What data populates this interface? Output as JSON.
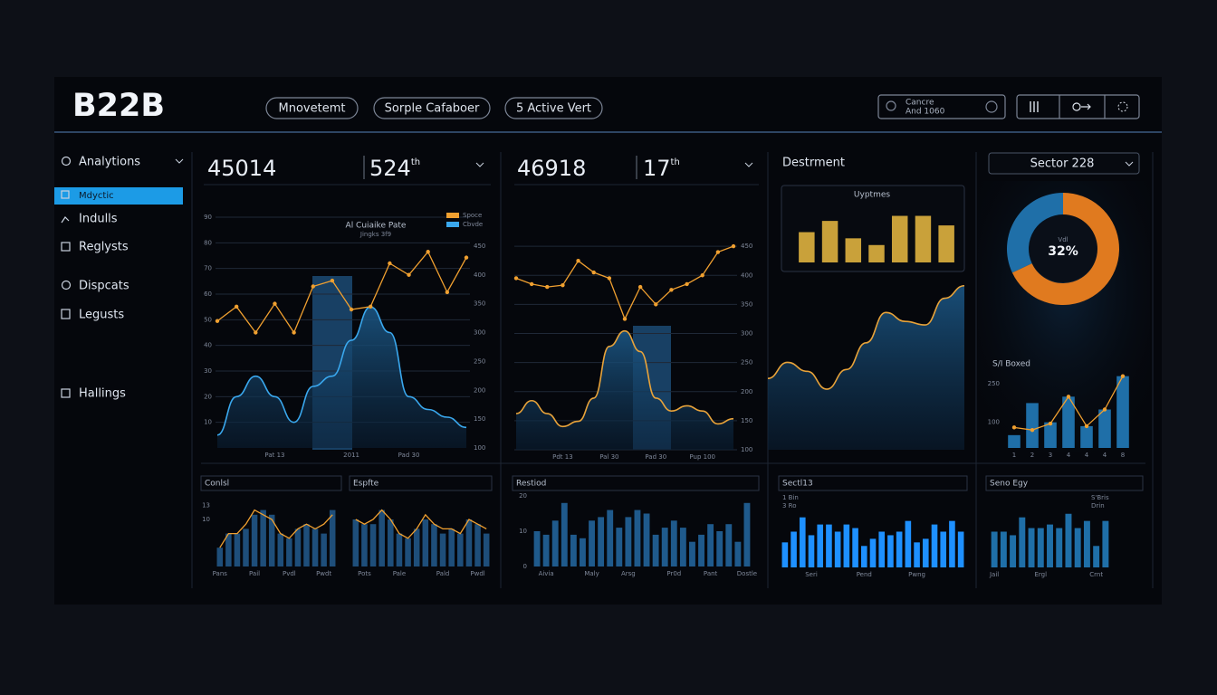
{
  "header": {
    "logo": "B22B",
    "tabs": [
      "Mnovetemt",
      "Sorple Cafaboer",
      "5 Active Vert"
    ],
    "search": [
      "Cancre",
      "And 1060"
    ]
  },
  "sidebar": {
    "items": [
      "Analytions",
      "Mdyctic",
      "Indulls",
      "Reglysts",
      "Dispcats",
      "Legusts",
      "Hallings"
    ]
  },
  "kpis": [
    {
      "value": "45014",
      "rank": "524",
      "suffix": "th"
    },
    {
      "value": "46918",
      "rank": "17",
      "suffix": "th"
    }
  ],
  "chart_data": [
    {
      "type": "line",
      "title": "Al Cuiaike Pate",
      "subtitle": "Jingks 3f9",
      "categories": [
        null,
        null,
        null,
        "Pat 13",
        null,
        null,
        null,
        "2011",
        null,
        null,
        "Pad 30",
        null,
        null,
        null
      ],
      "ylim": [
        0,
        90
      ],
      "yticks": [
        10,
        20,
        30,
        40,
        50,
        60,
        70,
        80,
        90
      ],
      "y2lim": [
        100,
        500
      ],
      "y2ticks": [
        100,
        150,
        200,
        250,
        300,
        350,
        400,
        450
      ],
      "grid": true,
      "legend": "top-right",
      "markers": true,
      "series": [
        {
          "name": "Spoce",
          "color": "#f0a030",
          "type": "line",
          "axis": "y2",
          "values": [
            320,
            345,
            300,
            350,
            300,
            380,
            390,
            340,
            345,
            420,
            400,
            440,
            370,
            430
          ]
        },
        {
          "name": "Cbvde",
          "color": "#3aa8ee",
          "type": "area",
          "values": [
            5,
            20,
            28,
            20,
            10,
            24,
            28,
            42,
            55,
            45,
            20,
            15,
            12,
            8
          ]
        }
      ]
    },
    {
      "type": "line",
      "categories": [
        null,
        null,
        null,
        "Pdt 13",
        null,
        null,
        "Pal 30",
        null,
        null,
        "Pad 30",
        null,
        null,
        "Pup 100",
        null,
        null
      ],
      "ylim": [
        0,
        90
      ],
      "y2lim": [
        100,
        500
      ],
      "y2ticks": [
        100,
        150,
        200,
        250,
        300,
        350,
        400,
        450
      ],
      "grid": true,
      "markers": true,
      "series": [
        {
          "color": "#f0a030",
          "type": "line",
          "axis": "y2",
          "values": [
            395,
            385,
            380,
            383,
            425,
            405,
            395,
            325,
            380,
            350,
            375,
            385,
            400,
            440,
            450
          ]
        },
        {
          "color": "#e8a33a",
          "type": "area",
          "values": [
            14,
            19,
            14,
            9,
            11,
            20,
            40,
            46,
            38,
            20,
            15,
            17,
            15,
            10,
            12
          ]
        }
      ]
    },
    {
      "type": "area",
      "title": "Destrment",
      "ylim": [
        0,
        100
      ],
      "color": "#e8a33a",
      "values": [
        40,
        49,
        44,
        34,
        45,
        60,
        77,
        72,
        70,
        85,
        92
      ]
    },
    {
      "type": "bar",
      "title": "Uyptmes",
      "ylim": [
        0,
        100
      ],
      "color": "#c9a13a",
      "values": [
        54,
        74,
        43,
        31,
        83,
        83,
        66
      ]
    },
    {
      "type": "pie",
      "title": "Sector 228",
      "values": [
        32,
        68
      ],
      "colors": [
        "#1f6fa8",
        "#e07a1f"
      ],
      "center_label": "32%",
      "center_sublabel": "Vdl"
    },
    {
      "type": "bar",
      "title": "S/I Boxed",
      "categories": [
        "1",
        "2",
        "3",
        "4",
        "4",
        "4",
        "8"
      ],
      "ylim": [
        0,
        300
      ],
      "yticks": [
        100,
        250
      ],
      "markers": true,
      "series": [
        {
          "color": "#1f6fa8",
          "type": "bar",
          "values": [
            50,
            175,
            100,
            200,
            85,
            150,
            280
          ]
        },
        {
          "color": "#f0a030",
          "type": "line",
          "values": [
            80,
            70,
            95,
            200,
            85,
            150,
            280
          ]
        }
      ]
    },
    {
      "type": "bar",
      "title": "Conlsl",
      "ylim": [
        0,
        15
      ],
      "yticks": [
        10,
        13
      ],
      "categories": [
        "Pans",
        null,
        null,
        null,
        "Pail",
        null,
        null,
        null,
        "Pvdl",
        null,
        null,
        null,
        "Pwdt",
        null
      ],
      "series": [
        {
          "color": "#1e4e7a",
          "type": "bar",
          "values": [
            4,
            7,
            7,
            8,
            11,
            12,
            11,
            7,
            6,
            8,
            9,
            8,
            7,
            12
          ]
        },
        {
          "color": "#f0a030",
          "type": "line",
          "values": [
            4,
            7,
            7,
            9,
            12,
            11,
            10,
            7,
            6,
            8,
            9,
            8,
            9,
            11
          ]
        }
      ]
    },
    {
      "type": "bar",
      "title": "Espfte",
      "ylim": [
        0,
        15
      ],
      "categories": [
        null,
        "Pots",
        null,
        null,
        null,
        "Pale",
        null,
        null,
        null,
        null,
        "Pald",
        null,
        null,
        null,
        "Pwdl",
        null
      ],
      "series": [
        {
          "color": "#1e4e7a",
          "type": "bar",
          "values": [
            10,
            9,
            9,
            12,
            10,
            7,
            6,
            8,
            10,
            9,
            7,
            8,
            7,
            10,
            9,
            7
          ]
        },
        {
          "color": "#f0a030",
          "type": "line",
          "values": [
            10,
            9,
            10,
            12,
            10,
            7,
            6,
            8,
            11,
            9,
            8,
            8,
            7,
            10,
            9,
            8
          ]
        }
      ]
    },
    {
      "type": "bar",
      "title": "Restiod",
      "ylim": [
        0,
        20
      ],
      "yticks": [
        0,
        10,
        20
      ],
      "color": "#1f5a8c",
      "categories": [
        null,
        "Aivia",
        null,
        null,
        null,
        null,
        "Maly",
        null,
        null,
        null,
        "Arsg",
        null,
        null,
        null,
        null,
        "Pr0d",
        null,
        null,
        null,
        "Pant",
        null,
        null,
        null,
        "Dostle"
      ],
      "values": [
        10,
        9,
        13,
        18,
        9,
        8,
        13,
        14,
        16,
        11,
        14,
        16,
        15,
        9,
        11,
        13,
        11,
        7,
        9,
        12,
        10,
        12,
        7,
        18
      ]
    },
    {
      "type": "bar",
      "title": "Sectl13",
      "annotations": [
        "1 Bin",
        "3 Ro"
      ],
      "ylim": [
        0,
        20
      ],
      "color": "#1e90ff",
      "categories": [
        null,
        null,
        null,
        "Seri",
        null,
        null,
        null,
        null,
        null,
        "Pend",
        null,
        null,
        null,
        null,
        null,
        "Pwng",
        null,
        null,
        null,
        null,
        null
      ],
      "values": [
        7,
        10,
        14,
        9,
        12,
        12,
        10,
        12,
        11,
        6,
        8,
        10,
        9,
        10,
        13,
        7,
        8,
        12,
        10,
        13,
        10
      ]
    },
    {
      "type": "bar",
      "title": "Seno Egy",
      "annotations": [
        "S'Bris",
        "Drin"
      ],
      "ylim": [
        0,
        20
      ],
      "color": "#1f6fa8",
      "categories": [
        "Jail",
        null,
        null,
        null,
        null,
        "Ergl",
        null,
        null,
        null,
        null,
        null,
        "Crnt",
        null
      ],
      "values": [
        10,
        10,
        9,
        14,
        11,
        11,
        12,
        11,
        15,
        11,
        13,
        6,
        13
      ]
    }
  ]
}
